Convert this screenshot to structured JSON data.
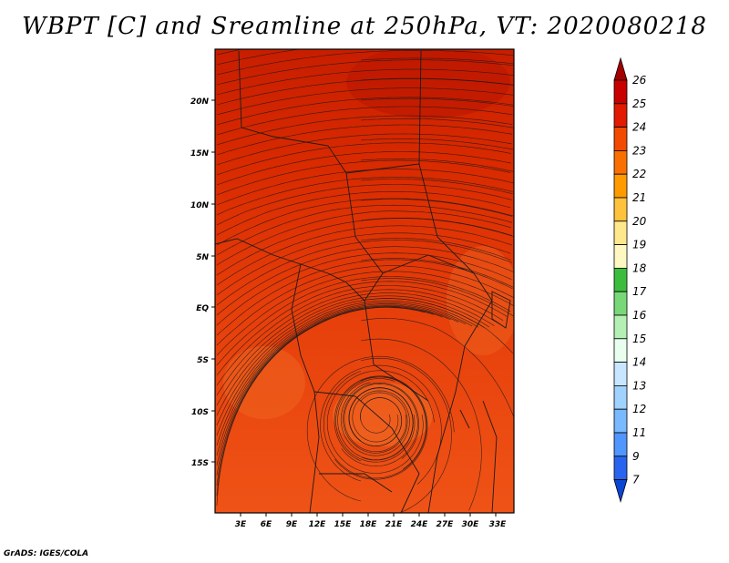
{
  "title": "WBPT [C] and Sreamline at 250hPa, VT: 2020080218",
  "credit": "GrADS: IGES/COLA",
  "map": {
    "lat_labels": [
      "20N",
      "15N",
      "10N",
      "5N",
      "EQ",
      "5S",
      "10S",
      "15S"
    ],
    "lon_labels": [
      "3E",
      "6E",
      "9E",
      "12E",
      "15E",
      "18E",
      "21E",
      "24E",
      "27E",
      "30E",
      "33E"
    ]
  },
  "colorbar": {
    "levels": [
      "26",
      "25",
      "24",
      "23",
      "22",
      "21",
      "20",
      "19",
      "18",
      "17",
      "16",
      "15",
      "14",
      "13",
      "12",
      "11",
      "9",
      "7"
    ],
    "colors": [
      "#a50000",
      "#c80000",
      "#e11a00",
      "#f24a00",
      "#fa7000",
      "#ff9a00",
      "#ffc23c",
      "#ffe88c",
      "#fff8c0",
      "#3cbc3c",
      "#78d878",
      "#b4f0b4",
      "#e8fff0",
      "#c8e6ff",
      "#a0d2ff",
      "#78b9ff",
      "#5096ff",
      "#2864f0",
      "#0a46d2"
    ]
  },
  "field_colors": {
    "north": "#d92600",
    "central": "#e93c0c",
    "south": "#f05a1a",
    "boundary": "#1a1a1a"
  }
}
